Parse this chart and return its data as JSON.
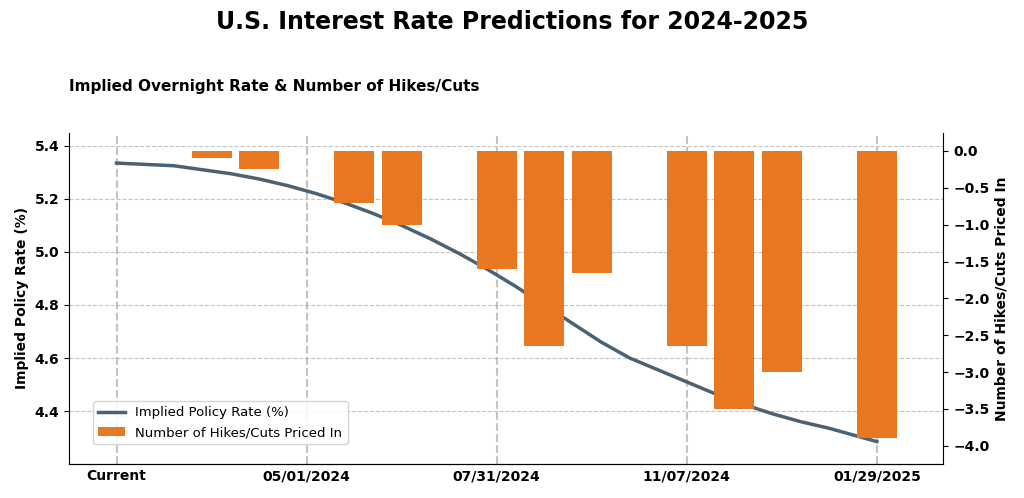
{
  "title": "U.S. Interest Rate Predictions for 2024-2025",
  "subtitle": "Implied Overnight Rate & Number of Hikes/Cuts",
  "ylabel_left": "Implied Policy Rate (%)",
  "ylabel_right": "Number of Hikes/Cuts Priced In",
  "background_color": "#ffffff",
  "x_tick_labels": [
    "Current",
    "05/01/2024",
    "07/31/2024",
    "11/07/2024",
    "01/29/2025"
  ],
  "x_tick_positions": [
    0.5,
    2.5,
    4.5,
    6.5,
    8.5
  ],
  "bar_positions": [
    1.5,
    2.0,
    3.0,
    3.5,
    4.5,
    5.0,
    5.5,
    6.5,
    7.0,
    7.5,
    8.5
  ],
  "bar_values": [
    -0.1,
    -0.25,
    -0.7,
    -1.0,
    -1.6,
    -2.65,
    -1.65,
    -2.65,
    -3.5,
    -3.0,
    -3.9
  ],
  "bar_color": "#e87722",
  "bar_width": 0.42,
  "line_x": [
    0.5,
    0.8,
    1.1,
    1.4,
    1.7,
    2.0,
    2.3,
    2.6,
    2.9,
    3.2,
    3.5,
    3.8,
    4.1,
    4.4,
    4.7,
    5.0,
    5.3,
    5.6,
    5.9,
    6.2,
    6.5,
    6.8,
    7.1,
    7.4,
    7.7,
    8.0,
    8.3,
    8.5
  ],
  "line_y": [
    5.335,
    5.33,
    5.325,
    5.31,
    5.295,
    5.275,
    5.25,
    5.22,
    5.185,
    5.145,
    5.1,
    5.05,
    4.995,
    4.935,
    4.87,
    4.8,
    4.73,
    4.66,
    4.6,
    4.555,
    4.51,
    4.465,
    4.425,
    4.39,
    4.36,
    4.335,
    4.305,
    4.285
  ],
  "line_color": "#4a6274",
  "line_width": 2.5,
  "ylim_left": [
    4.2,
    5.45
  ],
  "ylim_right": [
    -4.25,
    0.25
  ],
  "yticks_left": [
    4.4,
    4.6,
    4.8,
    5.0,
    5.2,
    5.4
  ],
  "yticks_right": [
    0.0,
    -0.5,
    -1.0,
    -1.5,
    -2.0,
    -2.5,
    -3.0,
    -3.5,
    -4.0
  ],
  "xlim": [
    0.0,
    9.2
  ],
  "legend_line_label": "Implied Policy Rate (%)",
  "legend_bar_label": "Number of Hikes/Cuts Priced In",
  "title_fontsize": 17,
  "subtitle_fontsize": 11,
  "tick_fontsize": 10,
  "label_fontsize": 10,
  "grid_color": "#aaaaaa",
  "grid_linestyle": "--",
  "grid_alpha": 0.7
}
